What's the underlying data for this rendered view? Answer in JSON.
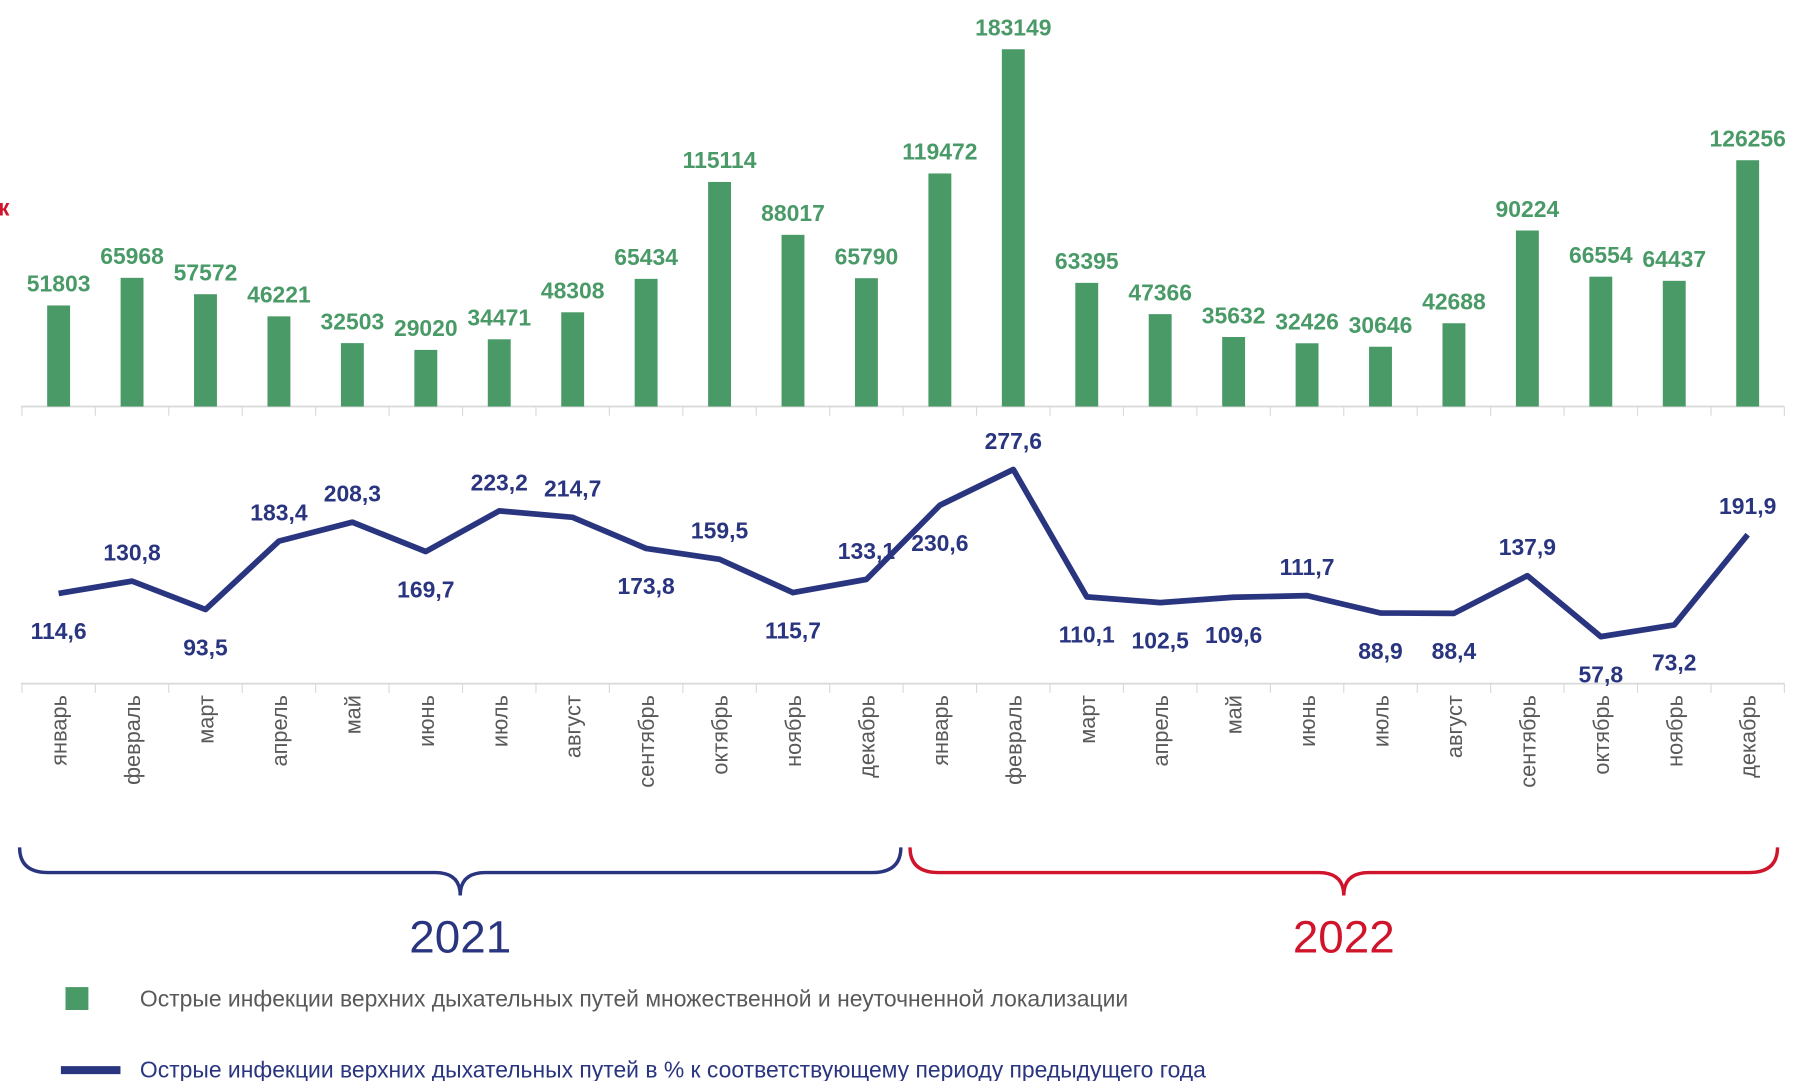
{
  "chart_data": {
    "type": "combo",
    "annotation": "к",
    "categories": [
      "январь",
      "февраль",
      "март",
      "апрель",
      "май",
      "июнь",
      "июль",
      "август",
      "сентябрь",
      "октябрь",
      "ноябрь",
      "декабрь",
      "январь",
      "февраль",
      "март",
      "апрель",
      "май",
      "июнь",
      "июль",
      "август",
      "сентябрь",
      "октябрь",
      "ноябрь",
      "декабрь"
    ],
    "groups": [
      {
        "label": "2021",
        "color": "#2a3580"
      },
      {
        "label": "2022",
        "color": "#d0142c"
      }
    ],
    "series": [
      {
        "name": "Острые инфекции верхних дыхательных путей множественной и неуточненной локализации",
        "type": "bar",
        "color": "#4a9a68",
        "values": [
          51803,
          65968,
          57572,
          46221,
          32503,
          29020,
          34471,
          48308,
          65434,
          115114,
          88017,
          65790,
          119472,
          183149,
          63395,
          47366,
          35632,
          32426,
          30646,
          42688,
          90224,
          66554,
          64437,
          126256
        ]
      },
      {
        "name": "Острые инфекции верхних дыхательных путей в % к соответствующему периоду предыдущего года",
        "type": "line",
        "color": "#2a3580",
        "values": [
          114.6,
          130.8,
          93.5,
          183.4,
          208.3,
          169.7,
          223.2,
          214.7,
          173.8,
          159.5,
          115.7,
          133.1,
          230.6,
          277.6,
          110.1,
          102.5,
          109.6,
          111.7,
          88.9,
          88.4,
          137.9,
          57.8,
          73.2,
          191.9
        ],
        "value_labels": [
          "114,6",
          "130,8",
          "93,5",
          "183,4",
          "208,3",
          "169,7",
          "223,2",
          "214,7",
          "173,8",
          "159,5",
          "115,7",
          "133,1",
          "230,6",
          "277,6",
          "110,1",
          "102,5",
          "109,6",
          "111,7",
          "88,9",
          "88,4",
          "137,9",
          "57,8",
          "73,2",
          "191,9"
        ]
      }
    ]
  }
}
